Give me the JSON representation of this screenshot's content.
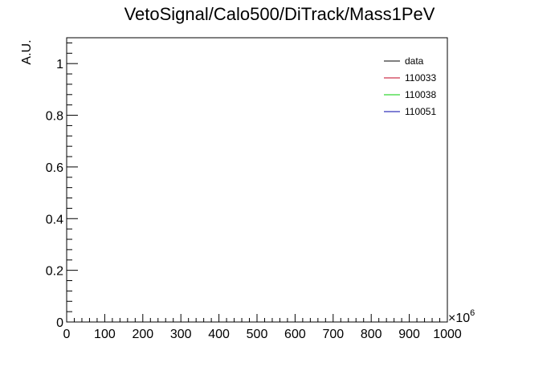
{
  "chart_data": {
    "type": "line",
    "title": "VetoSignal/Calo500/DiTrack/Mass1PeV",
    "xlabel": "",
    "ylabel": "A.U.",
    "xlim": [
      0,
      1000
    ],
    "ylim": [
      0,
      1.1
    ],
    "x_exponent_label": "×10",
    "x_exponent_power": "6",
    "x_ticks": [
      0,
      100,
      200,
      300,
      400,
      500,
      600,
      700,
      800,
      900,
      1000
    ],
    "x_tick_labels": [
      "0",
      "100",
      "200",
      "300",
      "400",
      "500",
      "600",
      "700",
      "800",
      "900",
      "1000"
    ],
    "y_ticks": [
      0,
      0.2,
      0.4,
      0.6,
      0.8,
      1
    ],
    "y_tick_labels": [
      "0",
      "0.2",
      "0.4",
      "0.6",
      "0.8",
      "1"
    ],
    "grid": false,
    "legend_position": "top-right",
    "series": [
      {
        "name": "data",
        "color": "#000000",
        "x": [],
        "y": []
      },
      {
        "name": "110033",
        "color": "#c00020",
        "x": [],
        "y": []
      },
      {
        "name": "110038",
        "color": "#00cc00",
        "x": [],
        "y": []
      },
      {
        "name": "110051",
        "color": "#0000aa",
        "x": [],
        "y": []
      }
    ]
  }
}
